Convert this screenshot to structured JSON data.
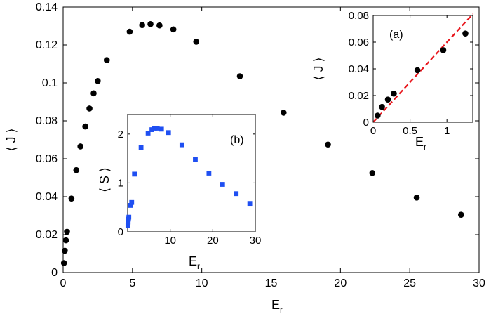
{
  "chart_data": [
    {
      "id": "main",
      "type": "scatter",
      "xlabel": "E",
      "xlabel_sub": "r",
      "ylabel": "⟨ J ⟩",
      "xlim": [
        0,
        30
      ],
      "ylim": [
        0,
        0.14
      ],
      "xticks": [
        0,
        5,
        10,
        15,
        20,
        25,
        30
      ],
      "yticks": [
        0,
        0.02,
        0.04,
        0.06,
        0.08,
        0.1,
        0.12,
        0.14
      ],
      "xtick_labels": [
        "0",
        "5",
        "10",
        "15",
        "20",
        "25",
        "30"
      ],
      "ytick_labels": [
        "0",
        "0.02",
        "0.04",
        "0.06",
        "0.08",
        "0.1",
        "0.12",
        "0.14"
      ],
      "marker": "circle",
      "color": "#000000",
      "series": [
        {
          "name": "J",
          "x": [
            0.06,
            0.12,
            0.2,
            0.28,
            0.6,
            0.95,
            1.25,
            1.6,
            1.9,
            2.2,
            2.5,
            3.15,
            4.8,
            5.7,
            6.3,
            6.95,
            7.95,
            9.6,
            12.75,
            15.9,
            19.1,
            22.3,
            25.5,
            28.7
          ],
          "y": [
            0.005,
            0.0115,
            0.017,
            0.0215,
            0.039,
            0.054,
            0.0665,
            0.077,
            0.0865,
            0.0945,
            0.101,
            0.112,
            0.127,
            0.1305,
            0.131,
            0.1303,
            0.1282,
            0.1217,
            0.1035,
            0.0843,
            0.0675,
            0.0525,
            0.0395,
            0.0305
          ]
        }
      ]
    },
    {
      "id": "inset-a",
      "type": "scatter",
      "annotation": "(a)",
      "xlabel": "E",
      "xlabel_sub": "r",
      "ylabel": "⟨ J ⟩",
      "xlim": [
        0,
        1.35
      ],
      "ylim": [
        0,
        0.08
      ],
      "xticks": [
        0,
        0.5,
        1
      ],
      "yticks": [
        0,
        0.02,
        0.04,
        0.06,
        0.08
      ],
      "xtick_labels": [
        "0",
        "0.5",
        "1"
      ],
      "ytick_labels": [
        "0",
        "0.02",
        "0.04",
        "0.06",
        "0.08"
      ],
      "marker": "circle",
      "color": "#000000",
      "fit_color": "#e8141b",
      "series": [
        {
          "name": "J (low E_r)",
          "x": [
            0.06,
            0.12,
            0.2,
            0.28,
            0.6,
            0.95,
            1.25
          ],
          "y": [
            0.005,
            0.0115,
            0.017,
            0.0215,
            0.039,
            0.054,
            0.0665
          ]
        },
        {
          "name": "linear fit",
          "style": "dashed",
          "x": [
            0,
            1.35
          ],
          "y": [
            0,
            0.081
          ]
        }
      ]
    },
    {
      "id": "inset-b",
      "type": "scatter",
      "annotation": "(b)",
      "xlabel": "E",
      "xlabel_sub": "r",
      "ylabel": "⟨ S ⟩",
      "xlim": [
        0,
        30
      ],
      "ylim": [
        0,
        2.4
      ],
      "xticks": [
        10,
        20,
        30
      ],
      "yticks": [
        0,
        1,
        2
      ],
      "xtick_labels": [
        "10",
        "20",
        "30"
      ],
      "ytick_labels": [
        "0",
        "1",
        "2"
      ],
      "marker": "square",
      "color": "#1f4ff2",
      "series": [
        {
          "name": "S",
          "x": [
            0.06,
            0.12,
            0.2,
            0.28,
            0.6,
            0.95,
            1.6,
            3.15,
            4.8,
            5.7,
            6.3,
            6.95,
            7.95,
            9.6,
            12.75,
            15.9,
            19.1,
            22.3,
            25.5,
            28.7
          ],
          "y": [
            0.13,
            0.2,
            0.26,
            0.3,
            0.54,
            0.6,
            1.18,
            1.73,
            2.02,
            2.09,
            2.12,
            2.12,
            2.1,
            2.03,
            1.78,
            1.48,
            1.2,
            0.97,
            0.78,
            0.58
          ]
        }
      ]
    }
  ]
}
